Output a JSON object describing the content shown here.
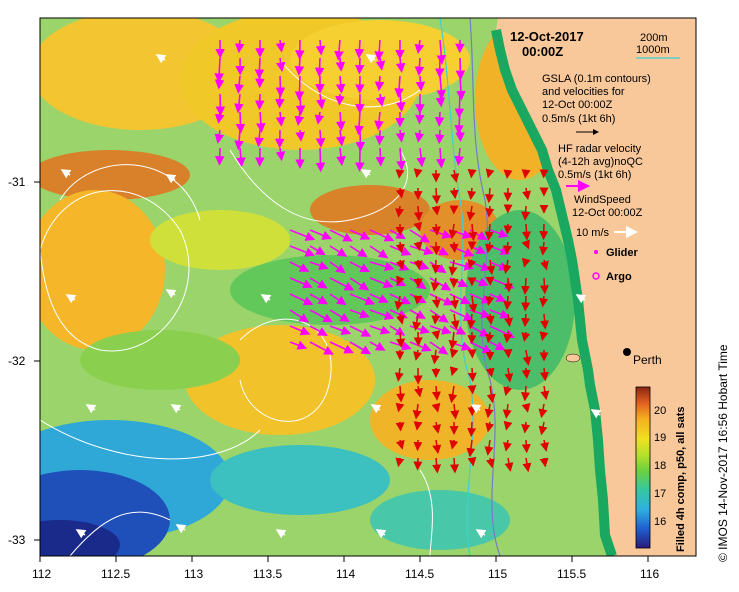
{
  "header": {
    "date": "12-Oct-2017",
    "time": "00:00Z"
  },
  "contours_legend": {
    "c1": "200m",
    "c2": "1000m",
    "c1_color": "#7a7ac8",
    "c2_color": "#3fd0d0"
  },
  "legend": {
    "gsla_1": "GSLA (0.1m contours)",
    "gsla_2": "and velocities for",
    "gsla_3": "12-Oct 00:00Z",
    "gsla_scale": "0.5m/s (1kt 6h)",
    "hf_1": "HF radar velocity",
    "hf_2": "(4-12h avg)noQC",
    "hf_scale": "0.5m/s (1kt 6h)",
    "wind_1": "WindSpeed",
    "wind_2": "12-Oct 00:00Z",
    "wind_scale": "10 m/s",
    "glider": "Glider",
    "argo": "Argo"
  },
  "city": "Perth",
  "x_ticks": [
    "112",
    "112.5",
    "113",
    "113.5",
    "114",
    "114.5",
    "115",
    "115.5",
    "116"
  ],
  "y_ticks": [
    "-31",
    "-32",
    "-33"
  ],
  "colorbar": {
    "ticks": [
      "20",
      "19",
      "18",
      "17",
      "16"
    ],
    "label": "Filled 4h comp, p50, all sats",
    "stops": [
      "#2a1a7a",
      "#1f5fd0",
      "#2fb0e0",
      "#34c8a0",
      "#6cd040",
      "#b8e02a",
      "#f0e020",
      "#f5b020",
      "#e06020",
      "#8a2510"
    ]
  },
  "credit": "© IMOS 14-Nov-2017 16:56 Hobart Time",
  "colors": {
    "land": "#f9c89a",
    "hf": "#ff00ff",
    "current": "#e00000",
    "wind": "#ffffff",
    "contour": "#ffffff"
  }
}
